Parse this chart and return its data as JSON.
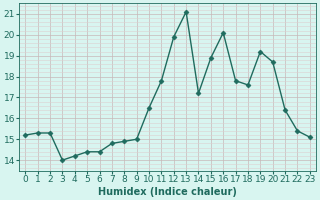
{
  "x": [
    0,
    1,
    2,
    3,
    4,
    5,
    6,
    7,
    8,
    9,
    10,
    11,
    12,
    13,
    14,
    15,
    16,
    17,
    18,
    19,
    20,
    21,
    22,
    23
  ],
  "y": [
    15.2,
    15.3,
    15.3,
    14.0,
    14.2,
    14.4,
    14.4,
    14.8,
    14.9,
    15.0,
    16.5,
    17.8,
    19.9,
    21.1,
    17.2,
    18.9,
    20.1,
    17.8,
    17.6,
    19.2,
    18.7,
    16.4,
    15.4,
    15.1
  ],
  "line_color": "#1f6b5e",
  "marker": "D",
  "marker_size": 2.5,
  "linewidth": 1.0,
  "background_color": "#d8f5f0",
  "major_grid_color": "#c8b8b8",
  "minor_grid_color": "#ddd0d0",
  "xlabel": "Humidex (Indice chaleur)",
  "xlabel_fontsize": 7,
  "tick_fontsize": 6.5,
  "tick_color": "#1f6b5e",
  "ylim": [
    13.5,
    21.5
  ],
  "xlim": [
    -0.5,
    23.5
  ],
  "yticks": [
    14,
    15,
    16,
    17,
    18,
    19,
    20,
    21
  ],
  "xticks": [
    0,
    1,
    2,
    3,
    4,
    5,
    6,
    7,
    8,
    9,
    10,
    11,
    12,
    13,
    14,
    15,
    16,
    17,
    18,
    19,
    20,
    21,
    22,
    23
  ]
}
